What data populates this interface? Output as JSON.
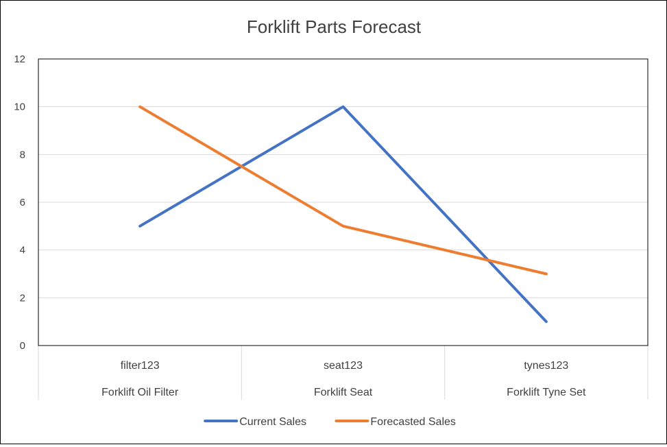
{
  "chart_data": {
    "type": "line",
    "title": "Forklift Parts Forecast",
    "categories": [
      {
        "code": "filter123",
        "name": "Forklift Oil Filter"
      },
      {
        "code": "seat123",
        "name": "Forklift Seat"
      },
      {
        "code": "tynes123",
        "name": "Forklift Tyne Set"
      }
    ],
    "series": [
      {
        "name": "Current Sales",
        "color": "#4472C4",
        "values": [
          5,
          10,
          1
        ]
      },
      {
        "name": "Forecasted Sales",
        "color": "#ED7D31",
        "values": [
          10,
          5,
          3
        ]
      }
    ],
    "ylim": [
      0,
      12
    ],
    "yticks": [
      0,
      2,
      4,
      6,
      8,
      10,
      12
    ],
    "grid": true,
    "legend": "bottom",
    "colors": {
      "grid": "#D9D9D9",
      "text": "#404040",
      "axis_line": "#000000"
    }
  }
}
